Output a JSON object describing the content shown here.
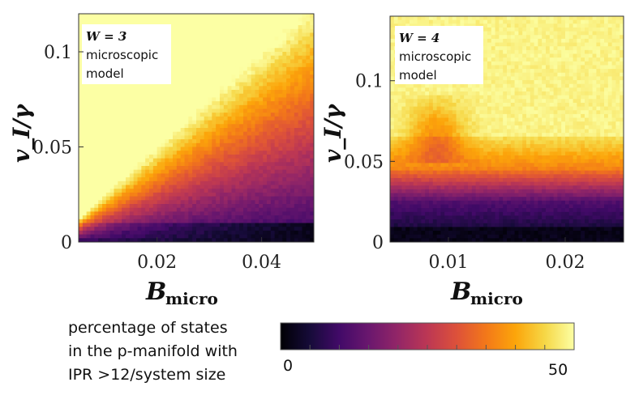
{
  "chart_data": [
    {
      "type": "heatmap",
      "panel_label": {
        "w": "W = 3",
        "lines": [
          "microscopic",
          "model"
        ]
      },
      "xlabel_main": "B",
      "xlabel_sub": "micro",
      "ylabel": "v_I/γ",
      "xlim": [
        0.005,
        0.05
      ],
      "ylim": [
        0,
        0.12
      ],
      "xticks": [
        {
          "value": 0.02,
          "label": "0.02"
        },
        {
          "value": 0.04,
          "label": "0.04"
        }
      ],
      "yticks": [
        {
          "value": 0,
          "label": "0"
        },
        {
          "value": 0.05,
          "label": "0.05"
        },
        {
          "value": 0.1,
          "label": "0.1"
        }
      ],
      "description_values": "percentage of states, 0 (dark) to 50 (bright)"
    },
    {
      "type": "heatmap",
      "panel_label": {
        "w": "W = 4",
        "lines": [
          "microscopic",
          "model"
        ]
      },
      "xlabel_main": "B",
      "xlabel_sub": "micro",
      "ylabel": "v_I/γ",
      "xlim": [
        0.005,
        0.025
      ],
      "ylim": [
        0,
        0.14
      ],
      "xticks": [
        {
          "value": 0.01,
          "label": "0.01"
        },
        {
          "value": 0.02,
          "label": "0.02"
        }
      ],
      "yticks": [
        {
          "value": 0,
          "label": "0"
        },
        {
          "value": 0.05,
          "label": "0.05"
        },
        {
          "value": 0.1,
          "label": "0.1"
        }
      ]
    }
  ],
  "colorbar": {
    "label_lines": [
      "percentage of states",
      "in the p-manifold with",
      "IPR >12/system size"
    ],
    "min_label": "0",
    "max_label": "50",
    "min": 0,
    "max": 50,
    "colormap": "inferno"
  }
}
